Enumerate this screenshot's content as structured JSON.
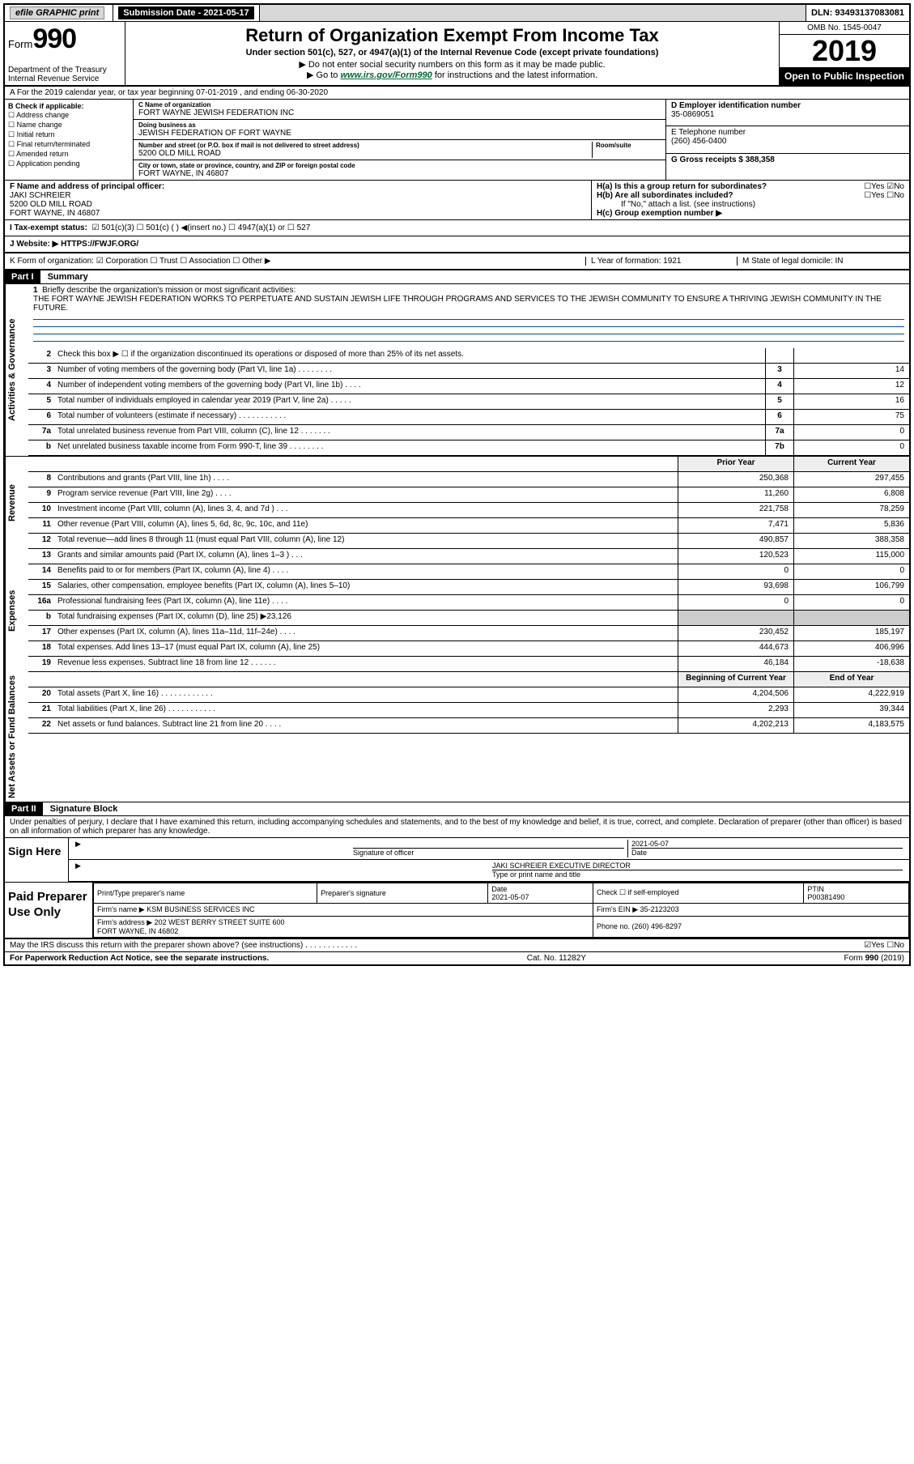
{
  "topbar": {
    "efile_label": "efile GRAPHIC print",
    "submission_label": "Submission Date - 2021-05-17",
    "dln": "DLN: 93493137083081"
  },
  "header": {
    "form_word": "Form",
    "form_num": "990",
    "dept": "Department of the Treasury\nInternal Revenue Service",
    "title": "Return of Organization Exempt From Income Tax",
    "sub1": "Under section 501(c), 527, or 4947(a)(1) of the Internal Revenue Code (except private foundations)",
    "sub2": "▶ Do not enter social security numbers on this form as it may be made public.",
    "sub3_pre": "▶ Go to ",
    "sub3_link": "www.irs.gov/Form990",
    "sub3_post": " for instructions and the latest information.",
    "omb": "OMB No. 1545-0047",
    "year": "2019",
    "open": "Open to Public Inspection"
  },
  "rowA": "A For the 2019 calendar year, or tax year beginning 07-01-2019     , and ending 06-30-2020",
  "boxB": {
    "title": "B Check if applicable:",
    "items": [
      "Address change",
      "Name change",
      "Initial return",
      "Final return/terminated",
      "Amended return",
      "Application pending"
    ]
  },
  "boxC": {
    "name_label": "C Name of organization",
    "name": "FORT WAYNE JEWISH FEDERATION INC",
    "dba_label": "Doing business as",
    "dba": "JEWISH FEDERATION OF FORT WAYNE",
    "addr_label": "Number and street (or P.O. box if mail is not delivered to street address)",
    "room_label": "Room/suite",
    "addr": "5200 OLD MILL ROAD",
    "city_label": "City or town, state or province, country, and ZIP or foreign postal code",
    "city": "FORT WAYNE, IN  46807"
  },
  "boxD": {
    "label": "D Employer identification number",
    "val": "35-0869051"
  },
  "boxE": {
    "label": "E Telephone number",
    "val": "(260) 456-0400"
  },
  "boxG": {
    "label": "G Gross receipts $ 388,358"
  },
  "boxF": {
    "label": "F  Name and address of principal officer:",
    "name": "JAKI SCHREIER",
    "addr1": "5200 OLD MILL ROAD",
    "addr2": "FORT WAYNE, IN  46807"
  },
  "boxH": {
    "ha": "H(a)  Is this a group return for subordinates?",
    "ha_yn": "☐Yes ☑No",
    "hb": "H(b)  Are all subordinates included?",
    "hb_yn": "☐Yes  ☐No",
    "hb_note": "If \"No,\" attach a list. (see instructions)",
    "hc": "H(c)  Group exemption number ▶"
  },
  "rowI": {
    "label": "I   Tax-exempt status:",
    "opts": "☑ 501(c)(3)   ☐ 501(c) (  ) ◀(insert no.)    ☐ 4947(a)(1) or   ☐ 527"
  },
  "rowJ": {
    "label": "J   Website: ▶  HTTPS://FWJF.ORG/"
  },
  "rowK": {
    "label": "K Form of organization:  ☑ Corporation  ☐ Trust  ☐ Association  ☐ Other ▶",
    "L": "L Year of formation: 1921",
    "M": "M State of legal domicile: IN"
  },
  "part1": {
    "label": "Part I",
    "title": "Summary"
  },
  "mission": {
    "num": "1",
    "label": "Briefly describe the organization's mission or most significant activities:",
    "text": "THE FORT WAYNE JEWISH FEDERATION WORKS TO PERPETUATE AND SUSTAIN JEWISH LIFE THROUGH PROGRAMS AND SERVICES TO THE JEWISH COMMUNITY TO ENSURE A THRIVING JEWISH COMMUNITY IN THE FUTURE."
  },
  "gov_lines": [
    {
      "n": "2",
      "t": "Check this box ▶ ☐ if the organization discontinued its operations or disposed of more than 25% of its net assets.",
      "box": "",
      "v": ""
    },
    {
      "n": "3",
      "t": "Number of voting members of the governing body (Part VI, line 1a)  .    .    .    .    .    .    .    .",
      "box": "3",
      "v": "14"
    },
    {
      "n": "4",
      "t": "Number of independent voting members of the governing body (Part VI, line 1b)  .    .    .    .",
      "box": "4",
      "v": "12"
    },
    {
      "n": "5",
      "t": "Total number of individuals employed in calendar year 2019 (Part V, line 2a)  .    .    .    .    .",
      "box": "5",
      "v": "16"
    },
    {
      "n": "6",
      "t": "Total number of volunteers (estimate if necessary)    .    .    .    .    .    .    .    .    .    .    .",
      "box": "6",
      "v": "75"
    },
    {
      "n": "7a",
      "t": "Total unrelated business revenue from Part VIII, column (C), line 12  .    .    .    .    .    .    .",
      "box": "7a",
      "v": "0"
    },
    {
      "n": "b",
      "t": "Net unrelated business taxable income from Form 990-T, line 39   .    .    .    .    .    .    .    .",
      "box": "7b",
      "v": "0"
    }
  ],
  "pycy_head": {
    "py": "Prior Year",
    "cy": "Current Year"
  },
  "rev_lines": [
    {
      "n": "8",
      "t": "Contributions and grants (Part VIII, line 1h)   .    .    .    .",
      "py": "250,368",
      "cy": "297,455"
    },
    {
      "n": "9",
      "t": "Program service revenue (Part VIII, line 2g)   .    .    .    .",
      "py": "11,260",
      "cy": "6,808"
    },
    {
      "n": "10",
      "t": "Investment income (Part VIII, column (A), lines 3, 4, and 7d )   .    .    .",
      "py": "221,758",
      "cy": "78,259"
    },
    {
      "n": "11",
      "t": "Other revenue (Part VIII, column (A), lines 5, 6d, 8c, 9c, 10c, and 11e)",
      "py": "7,471",
      "cy": "5,836"
    },
    {
      "n": "12",
      "t": "Total revenue—add lines 8 through 11 (must equal Part VIII, column (A), line 12)",
      "py": "490,857",
      "cy": "388,358"
    }
  ],
  "exp_lines": [
    {
      "n": "13",
      "t": "Grants and similar amounts paid (Part IX, column (A), lines 1–3 )  .    .    .",
      "py": "120,523",
      "cy": "115,000"
    },
    {
      "n": "14",
      "t": "Benefits paid to or for members (Part IX, column (A), line 4)   .    .    .    .",
      "py": "0",
      "cy": "0"
    },
    {
      "n": "15",
      "t": "Salaries, other compensation, employee benefits (Part IX, column (A), lines 5–10)",
      "py": "93,698",
      "cy": "106,799"
    },
    {
      "n": "16a",
      "t": "Professional fundraising fees (Part IX, column (A), line 11e)  .    .    .    .",
      "py": "0",
      "cy": "0"
    },
    {
      "n": "b",
      "t": "Total fundraising expenses (Part IX, column (D), line 25) ▶23,126",
      "py": "",
      "cy": "",
      "shaded": true
    },
    {
      "n": "17",
      "t": "Other expenses (Part IX, column (A), lines 11a–11d, 11f–24e)  .    .    .    .",
      "py": "230,452",
      "cy": "185,197"
    },
    {
      "n": "18",
      "t": "Total expenses. Add lines 13–17 (must equal Part IX, column (A), line 25)",
      "py": "444,673",
      "cy": "406,996"
    },
    {
      "n": "19",
      "t": "Revenue less expenses. Subtract line 18 from line 12  .    .    .    .    .    .",
      "py": "46,184",
      "cy": "-18,638"
    }
  ],
  "na_head": {
    "py": "Beginning of Current Year",
    "cy": "End of Year"
  },
  "na_lines": [
    {
      "n": "20",
      "t": "Total assets (Part X, line 16)  .    .    .    .    .    .    .    .    .    .    .    .",
      "py": "4,204,506",
      "cy": "4,222,919"
    },
    {
      "n": "21",
      "t": "Total liabilities (Part X, line 26)  .    .    .    .    .    .    .    .    .    .    .",
      "py": "2,293",
      "cy": "39,344"
    },
    {
      "n": "22",
      "t": "Net assets or fund balances. Subtract line 21 from line 20   .    .    .    .",
      "py": "4,202,213",
      "cy": "4,183,575"
    }
  ],
  "part2": {
    "label": "Part II",
    "title": "Signature Block"
  },
  "decl": "Under penalties of perjury, I declare that I have examined this return, including accompanying schedules and statements, and to the best of my knowledge and belief, it is true, correct, and complete. Declaration of preparer (other than officer) is based on all information of which preparer has any knowledge.",
  "sign": {
    "left": "Sign Here",
    "sig_label": "Signature of officer",
    "date_label": "Date",
    "date": "2021-05-07",
    "name": "JAKI SCHREIER  EXECUTIVE DIRECTOR",
    "name_label": "Type or print name and title"
  },
  "prep": {
    "left": "Paid Preparer Use Only",
    "r1": {
      "c1": "Print/Type preparer's name",
      "c2": "Preparer's signature",
      "c3": "Date\n2021-05-07",
      "c4": "Check ☐ if self-employed",
      "c5": "PTIN\nP00381490"
    },
    "r2": {
      "c1": "Firm's name    ▶ KSM BUSINESS SERVICES INC",
      "c2": "Firm's EIN ▶ 35-2123203"
    },
    "r3": {
      "c1": "Firm's address ▶ 202 WEST BERRY STREET SUITE 600\n                        FORT WAYNE, IN  46802",
      "c2": "Phone no. (260) 496-8297"
    }
  },
  "discuss": "May the IRS discuss this return with the preparer shown above? (see instructions)    .    .    .    .    .    .    .    .    .    .    .    .",
  "discuss_yn": "☑Yes  ☐No",
  "footer": {
    "left": "For Paperwork Reduction Act Notice, see the separate instructions.",
    "mid": "Cat. No. 11282Y",
    "right": "Form 990 (2019)"
  },
  "vtabs": {
    "gov": "Activities & Governance",
    "rev": "Revenue",
    "exp": "Expenses",
    "na": "Net Assets or Fund Balances"
  }
}
